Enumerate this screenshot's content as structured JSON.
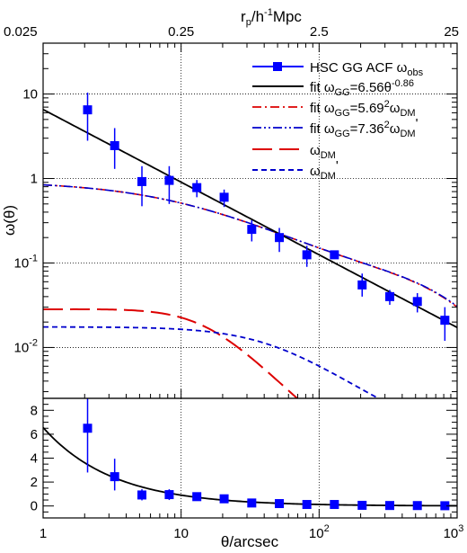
{
  "chart_data": {
    "type": "scatter",
    "x_axis": {
      "label": "θ/arcsec",
      "scale": "log",
      "range": [
        1,
        1000
      ],
      "tick_labels": [
        "1",
        "10",
        "10²",
        "10³"
      ]
    },
    "top_axis": {
      "label": "r_p/h⁻¹Mpc",
      "scale": "log",
      "range": [
        0.025,
        25
      ],
      "tick_labels": [
        "0.025",
        "0.25",
        "2.5",
        "25"
      ]
    },
    "upper_panel": {
      "y_axis": {
        "label": "ω(θ)",
        "scale": "log",
        "range": [
          0.0025,
          40
        ],
        "tick_labels": [
          "10⁻²",
          "10⁻¹",
          "1",
          "10"
        ]
      },
      "grid": true,
      "legend_position": "top-right",
      "observed": {
        "name": "HSC GG ACF ω_obs",
        "color": "#0000ff",
        "x": [
          2.1,
          3.3,
          5.2,
          8.2,
          13,
          20.5,
          32.5,
          51.5,
          81.5,
          129,
          205,
          325,
          515,
          815
        ],
        "y": [
          6.5,
          2.45,
          0.92,
          0.95,
          0.78,
          0.6,
          0.25,
          0.2,
          0.125,
          0.125,
          0.055,
          0.04,
          0.035,
          0.021
        ],
        "err_low": [
          3.7,
          1.15,
          0.45,
          0.45,
          0.18,
          0.14,
          0.07,
          0.065,
          0.035,
          0.012,
          0.015,
          0.008,
          0.009,
          0.009
        ],
        "err_high": [
          3.9,
          1.5,
          0.48,
          0.45,
          0.18,
          0.14,
          0.07,
          0.06,
          0.035,
          0.012,
          0.02,
          0.008,
          0.009,
          0.009
        ]
      },
      "series": [
        {
          "name": "fit ω_GG=6.56θ^-0.86",
          "color": "#000000",
          "dash": "solid"
        },
        {
          "name": "fit ω_GG=5.69²ω_DM",
          "color": "#dd0000",
          "dash": "dashdot"
        },
        {
          "name": "fit ω_GG=7.36²ω_DM'",
          "color": "#0000cc",
          "dash": "dashdotdot"
        },
        {
          "name": "ω_DM",
          "color": "#dd0000",
          "dash": "longdash"
        },
        {
          "name": "ω_DM'",
          "color": "#0000cc",
          "dash": "shortdash"
        }
      ]
    },
    "lower_panel": {
      "y_axis": {
        "label": "",
        "scale": "linear",
        "range": [
          -1,
          9
        ],
        "tick_labels": [
          "0",
          "2",
          "4",
          "6",
          "8"
        ]
      },
      "observed_name": "HSC GG ACF ω_obs",
      "fit_name": "fit ω_GG=6.56θ^-0.86"
    }
  }
}
